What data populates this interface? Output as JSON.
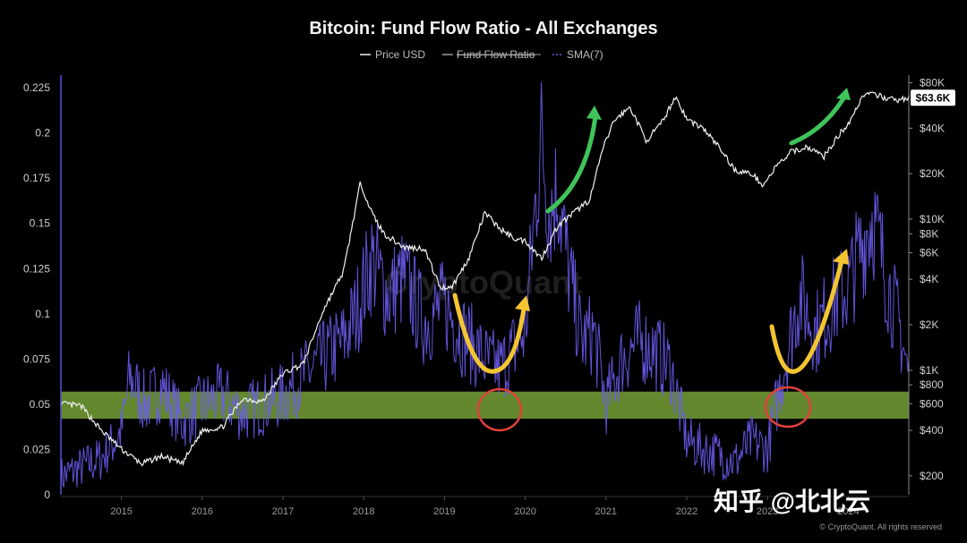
{
  "colors": {
    "background": "#000000",
    "price_line": "#f2f2f2",
    "sma_line": "#6a5cf0",
    "ratio_legend": "#9a9a9a",
    "band": "#7fae3a",
    "arrow_yellow": "#f3c531",
    "arrow_green": "#3fc45a",
    "circle_red": "#e0413a"
  },
  "legend": {
    "price_label": "Price USD",
    "ratio_label": "Fund Flow Ratio",
    "sma_label": "SMA(7)"
  },
  "watermark": "CryptoQuant",
  "credit": "© CryptoQuant. All rights reserved",
  "overlay_text": "知乎 @北北云",
  "chart_data": {
    "type": "line",
    "title": "Bitcoin: Fund Flow Ratio - All Exchanges",
    "x_range": [
      2014.25,
      2024.75
    ],
    "x_ticks": [
      "2015",
      "2016",
      "2017",
      "2018",
      "2019",
      "2020",
      "2021",
      "2022",
      "2023",
      "2024"
    ],
    "y_left": {
      "range": [
        0,
        0.23
      ],
      "ticks": [
        "0",
        "0.025",
        "0.05",
        "0.075",
        "0.1",
        "0.125",
        "0.15",
        "0.175",
        "0.2",
        "0.225"
      ]
    },
    "y_right": {
      "scale": "log",
      "range": [
        150,
        85000
      ],
      "ticks": [
        {
          "label": "$80K",
          "value": 80000
        },
        {
          "label": "$40K",
          "value": 40000
        },
        {
          "label": "$20K",
          "value": 20000
        },
        {
          "label": "$10K",
          "value": 10000
        },
        {
          "label": "$8K",
          "value": 8000
        },
        {
          "label": "$6K",
          "value": 6000
        },
        {
          "label": "$4K",
          "value": 4000
        },
        {
          "label": "$2K",
          "value": 2000
        },
        {
          "label": "$1K",
          "value": 1000
        },
        {
          "label": "$800",
          "value": 800
        },
        {
          "label": "$600",
          "value": 600
        },
        {
          "label": "$400",
          "value": 400
        },
        {
          "label": "$200",
          "value": 200
        }
      ],
      "current_price_label": "$63.6K",
      "current_price_value": 63600
    },
    "band": [
      0.042,
      0.057
    ],
    "series": [
      {
        "name": "Price USD",
        "axis": "right",
        "x": [
          2014.25,
          2014.5,
          2014.75,
          2015.0,
          2015.25,
          2015.5,
          2015.75,
          2016.0,
          2016.25,
          2016.5,
          2016.75,
          2017.0,
          2017.25,
          2017.5,
          2017.75,
          2017.96,
          2018.1,
          2018.25,
          2018.5,
          2018.75,
          2018.95,
          2019.1,
          2019.3,
          2019.5,
          2019.7,
          2019.9,
          2020.0,
          2020.2,
          2020.4,
          2020.6,
          2020.8,
          2020.95,
          2021.1,
          2021.3,
          2021.5,
          2021.7,
          2021.86,
          2022.0,
          2022.2,
          2022.4,
          2022.6,
          2022.8,
          2022.95,
          2023.1,
          2023.3,
          2023.5,
          2023.7,
          2023.9,
          2024.0,
          2024.2,
          2024.4,
          2024.6,
          2024.75
        ],
        "values": [
          600,
          580,
          400,
          300,
          240,
          270,
          240,
          400,
          420,
          650,
          620,
          950,
          1100,
          2500,
          4500,
          17500,
          11000,
          8000,
          6500,
          6400,
          3500,
          3600,
          5500,
          11000,
          8500,
          7300,
          7200,
          5500,
          9000,
          11000,
          13500,
          28000,
          45000,
          55000,
          33000,
          44000,
          65000,
          46000,
          40000,
          30000,
          21000,
          20000,
          16800,
          22000,
          28000,
          30000,
          26000,
          37000,
          43000,
          68000,
          65000,
          61000,
          63600
        ]
      },
      {
        "name": "SMA(7)",
        "axis": "left",
        "x": [
          2014.25,
          2014.5,
          2014.75,
          2015.0,
          2015.1,
          2015.3,
          2015.5,
          2015.75,
          2016.0,
          2016.25,
          2016.5,
          2016.75,
          2017.0,
          2017.25,
          2017.5,
          2017.75,
          2017.9,
          2018.1,
          2018.3,
          2018.5,
          2018.75,
          2019.0,
          2019.2,
          2019.4,
          2019.55,
          2019.7,
          2019.85,
          2020.0,
          2020.1,
          2020.2,
          2020.3,
          2020.4,
          2020.55,
          2020.7,
          2020.85,
          2021.0,
          2021.2,
          2021.4,
          2021.6,
          2021.8,
          2022.0,
          2022.2,
          2022.4,
          2022.6,
          2022.8,
          2023.0,
          2023.2,
          2023.4,
          2023.6,
          2023.8,
          2024.0,
          2024.15,
          2024.3,
          2024.5,
          2024.65,
          2024.75
        ],
        "values": [
          0.01,
          0.015,
          0.02,
          0.035,
          0.065,
          0.05,
          0.06,
          0.04,
          0.05,
          0.055,
          0.045,
          0.05,
          0.055,
          0.065,
          0.075,
          0.085,
          0.1,
          0.13,
          0.11,
          0.12,
          0.095,
          0.105,
          0.09,
          0.08,
          0.072,
          0.07,
          0.08,
          0.09,
          0.145,
          0.2,
          0.155,
          0.17,
          0.12,
          0.085,
          0.09,
          0.05,
          0.075,
          0.085,
          0.08,
          0.07,
          0.03,
          0.025,
          0.022,
          0.018,
          0.03,
          0.025,
          0.07,
          0.11,
          0.09,
          0.105,
          0.115,
          0.135,
          0.155,
          0.115,
          0.09,
          0.065
        ]
      }
    ]
  }
}
